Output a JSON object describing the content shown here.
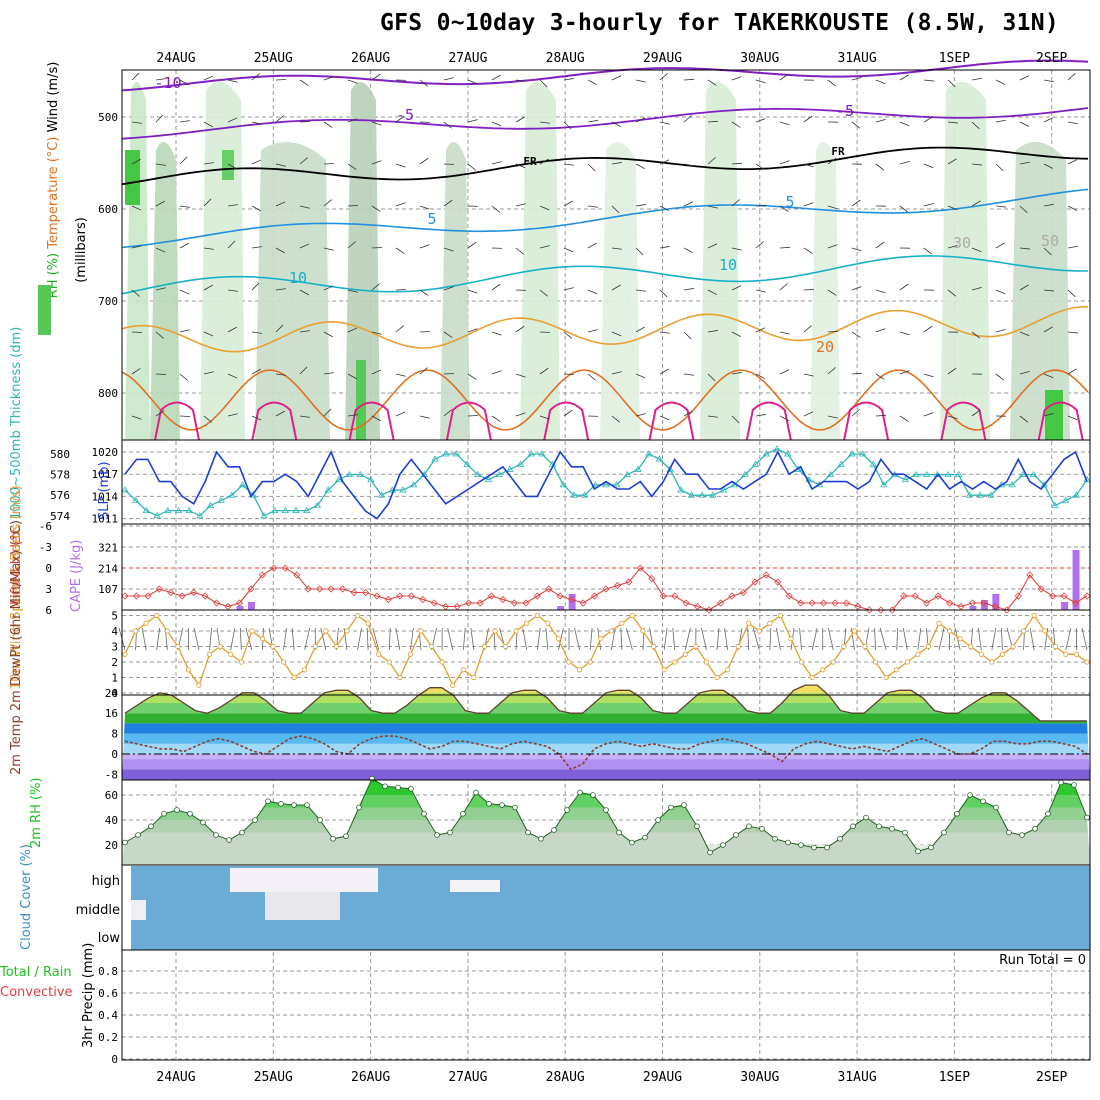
{
  "title": "GFS 0~10day 3-hourly for TAKERKOUSTE (8.5W, 31N)",
  "colors": {
    "slp": "#1d3fcf",
    "thickness": "#2fb6b6",
    "lifted": "#e04040",
    "cape": "#b070f0",
    "wind": "#e0a030",
    "temp_dark": "#8a4030",
    "rh_green": "#20c020",
    "cloud": "#6aacd6",
    "purple": "#8020c0",
    "orange": "#e07020",
    "magenta": "#e0208a",
    "cyan": "#18b0c8",
    "blue": "#2090e0"
  },
  "chart_data": {
    "type": "meteogram",
    "dates": [
      "24AUG",
      "25AUG",
      "26AUG",
      "27AUG",
      "28AUG",
      "29AUG",
      "30AUG",
      "31AUG",
      "1SEP",
      "2SEP"
    ],
    "upper_air": {
      "y_axis_label": "(millibars)",
      "pressure_ticks": [
        500,
        600,
        700,
        800
      ],
      "contour_labels": [
        "-10",
        "-5",
        "-5",
        "FR",
        "FR",
        "5",
        "5",
        "10",
        "10",
        "20",
        "30",
        "50"
      ],
      "legend": {
        "rh": "RH (%)",
        "temp": "Temperature (°C)",
        "wind": "Wind (m/s)"
      }
    },
    "pressure_panel": {
      "thickness_label": "1000~500mb Thickness (dm)",
      "slp_label": "SLP (mb)",
      "thickness_ticks": [
        "580",
        "578",
        "576",
        "574"
      ],
      "slp_ticks": [
        "1020",
        "1017",
        "1014",
        "1011"
      ],
      "slp": [
        1017,
        1019,
        1019,
        1016,
        1016,
        1014,
        1013,
        1016,
        1020,
        1018,
        1018,
        1014,
        1016,
        1016,
        1017,
        1016,
        1014,
        1017,
        1020,
        1016,
        1014,
        1012,
        1011,
        1013,
        1017,
        1019,
        1017,
        1015,
        1013,
        1014,
        1015,
        1016,
        1017,
        1018,
        1016,
        1014,
        1014,
        1017,
        1020,
        1018,
        1018,
        1015,
        1016,
        1015,
        1015,
        1016,
        1014,
        1016,
        1019,
        1017,
        1017,
        1015,
        1015,
        1016,
        1015,
        1016,
        1017,
        1020,
        1017,
        1018,
        1015,
        1016,
        1016,
        1016,
        1015,
        1016,
        1019,
        1017,
        1017,
        1016,
        1015,
        1017,
        1015,
        1016,
        1015,
        1016,
        1015,
        1016,
        1019,
        1016,
        1015,
        1017,
        1019,
        1020,
        1016
      ],
      "thickness": [
        576.5,
        575.5,
        574.5,
        574,
        574.5,
        574.5,
        574.5,
        574,
        575,
        575.5,
        576,
        577,
        576,
        574,
        574.5,
        574.5,
        574.5,
        574.5,
        575,
        576.5,
        577.5,
        578,
        578,
        577.5,
        576,
        576.5,
        576.5,
        577,
        578,
        579.5,
        580,
        580,
        579,
        578,
        577.5,
        578,
        578.5,
        579,
        580,
        580,
        579,
        577,
        576,
        576,
        577,
        577,
        577,
        578,
        578.5,
        580,
        579.5,
        578.5,
        576.5,
        576,
        576,
        576,
        576.5,
        577,
        578,
        579,
        580,
        580.5,
        580,
        578.5,
        577.5,
        577,
        578,
        579,
        580,
        580,
        579,
        577,
        578,
        577.5,
        578,
        578,
        578,
        578,
        578,
        576,
        576,
        576,
        577,
        577,
        578,
        578,
        577,
        575,
        575.5,
        576,
        577.5
      ]
    },
    "stability": {
      "lifted_label": "Lifted Index",
      "cape_label": "CAPE (J/kg)",
      "lifted_ticks": [
        "-6",
        "-3",
        "0",
        "3",
        "6"
      ],
      "cape_ticks": [
        "321",
        "214",
        "107"
      ],
      "lifted": [
        4,
        4,
        4,
        3,
        3.5,
        4,
        3.5,
        4,
        5,
        5.5,
        5,
        3,
        1,
        0,
        0,
        1,
        3,
        3,
        3,
        3,
        3.5,
        3.5,
        4,
        4.5,
        4,
        4,
        4.5,
        5,
        5.5,
        5.5,
        5,
        5,
        4,
        4.5,
        5,
        5,
        4,
        3,
        4,
        4.5,
        5,
        4,
        3,
        2.5,
        2,
        0,
        1.5,
        4,
        4,
        5,
        5.5,
        6,
        5,
        4,
        3.5,
        2,
        1,
        2,
        4,
        5,
        5,
        5,
        5,
        5,
        5.5,
        6,
        6,
        6,
        4,
        4,
        5,
        4,
        5,
        5.5,
        5,
        5,
        5.5,
        6,
        4,
        1,
        3,
        4,
        4,
        5,
        4
      ],
      "cape": [
        0,
        0,
        0,
        0,
        0,
        0,
        0,
        0,
        0,
        0,
        20,
        40,
        0,
        0,
        0,
        0,
        0,
        0,
        0,
        0,
        0,
        0,
        0,
        0,
        0,
        0,
        0,
        0,
        0,
        0,
        0,
        0,
        0,
        0,
        0,
        0,
        0,
        0,
        20,
        80,
        0,
        0,
        0,
        0,
        0,
        0,
        0,
        0,
        0,
        0,
        0,
        0,
        0,
        0,
        0,
        0,
        0,
        0,
        0,
        0,
        0,
        0,
        0,
        0,
        0,
        0,
        0,
        0,
        0,
        0,
        0,
        0,
        0,
        0,
        20,
        50,
        80,
        0,
        0,
        0,
        0,
        0,
        40,
        300,
        0
      ]
    },
    "wind10m": {
      "label": "10m Wind Speed & Barbs (m/s)",
      "ticks": [
        0,
        1,
        2,
        3,
        4,
        5
      ],
      "speed": [
        2.5,
        4,
        4.5,
        5,
        4,
        3,
        1.5,
        0.5,
        2.5,
        3,
        2.5,
        2,
        4,
        3.5,
        3,
        2,
        1,
        1.5,
        3,
        4,
        3,
        4,
        5,
        4.5,
        2.5,
        2,
        1,
        2.5,
        4,
        3,
        2,
        0.5,
        1.5,
        1,
        3,
        4,
        3,
        4,
        4.5,
        5,
        4.5,
        3.5,
        2,
        1.5,
        2,
        3.5,
        4,
        4.5,
        5,
        4,
        3,
        1.5,
        2,
        2.5,
        3,
        2,
        1,
        1.5,
        3,
        4.5,
        4,
        4.5,
        5,
        3.5,
        2,
        1,
        1.5,
        2,
        3,
        4,
        3,
        2,
        1,
        1.5,
        2,
        2.5,
        3,
        4.5,
        4,
        3.5,
        3,
        2.5,
        2,
        2.5,
        3,
        4,
        5,
        4,
        3,
        2.5,
        2.5,
        2
      ]
    },
    "temp2m": {
      "label": "2m Temp 2m DewPt (6hr Min/Max) (°C)",
      "ticks": [
        "24",
        "16",
        "8",
        "0",
        "-8"
      ],
      "temp": [
        16,
        19,
        22,
        24,
        23,
        20,
        17,
        16,
        18,
        21,
        24,
        24,
        21,
        17,
        16,
        16,
        20,
        24,
        25,
        25,
        22,
        17,
        16,
        16,
        19,
        23,
        26,
        26,
        23,
        17,
        16,
        16,
        20,
        24,
        25,
        25,
        22,
        17,
        16,
        16,
        20,
        24,
        25,
        25,
        22,
        17,
        16,
        16,
        20,
        24,
        25,
        25,
        22,
        17,
        16,
        16,
        20,
        25,
        27,
        27,
        23,
        17,
        16,
        16,
        20,
        24,
        25,
        25,
        22,
        17,
        16,
        16,
        19,
        22,
        24,
        24,
        21,
        17,
        13,
        13,
        13,
        13,
        13
      ],
      "dewpt": [
        5,
        4,
        3,
        2,
        2,
        1,
        3,
        5,
        6,
        5,
        3,
        1,
        0,
        3,
        6,
        7,
        6,
        4,
        1,
        0,
        4,
        6,
        7,
        7,
        6,
        4,
        2,
        3,
        5,
        5,
        4,
        3,
        2,
        4,
        5,
        4,
        3,
        0,
        -6,
        -4,
        2,
        4,
        5,
        4,
        3,
        4,
        3,
        2,
        2,
        4,
        5,
        6,
        5,
        4,
        2,
        0,
        -3,
        2,
        4,
        5,
        4,
        3,
        2,
        3,
        2,
        1,
        3,
        5,
        6,
        4,
        2,
        0,
        0,
        2,
        5,
        5,
        4,
        4,
        5,
        5,
        4,
        3,
        0
      ]
    },
    "rh2m": {
      "label": "2m RH (%)",
      "ticks": [
        20,
        40,
        60
      ],
      "values": [
        22,
        28,
        35,
        45,
        48,
        45,
        38,
        28,
        24,
        30,
        40,
        55,
        53,
        52,
        52,
        40,
        25,
        27,
        50,
        73,
        67,
        66,
        65,
        45,
        28,
        30,
        45,
        62,
        53,
        52,
        50,
        30,
        25,
        32,
        48,
        62,
        60,
        48,
        30,
        22,
        26,
        40,
        50,
        52,
        35,
        14,
        20,
        28,
        35,
        33,
        25,
        22,
        20,
        18,
        18,
        25,
        35,
        42,
        35,
        33,
        30,
        15,
        18,
        30,
        45,
        60,
        55,
        50,
        30,
        28,
        33,
        45,
        70,
        68,
        42
      ],
      "range_x_fraction": [
        0,
        1
      ]
    },
    "clouds": {
      "label": "Cloud Cover (%)",
      "levels": [
        "high",
        "middle",
        "low"
      ]
    },
    "precip": {
      "label": "3hr Precip (mm)",
      "label_left": "Total / Rain",
      "label_left2": "Convective",
      "ticks": [
        "0",
        "0.2",
        "0.4",
        "0.6",
        "0.8"
      ],
      "run_total": "Run Total = 0"
    }
  }
}
